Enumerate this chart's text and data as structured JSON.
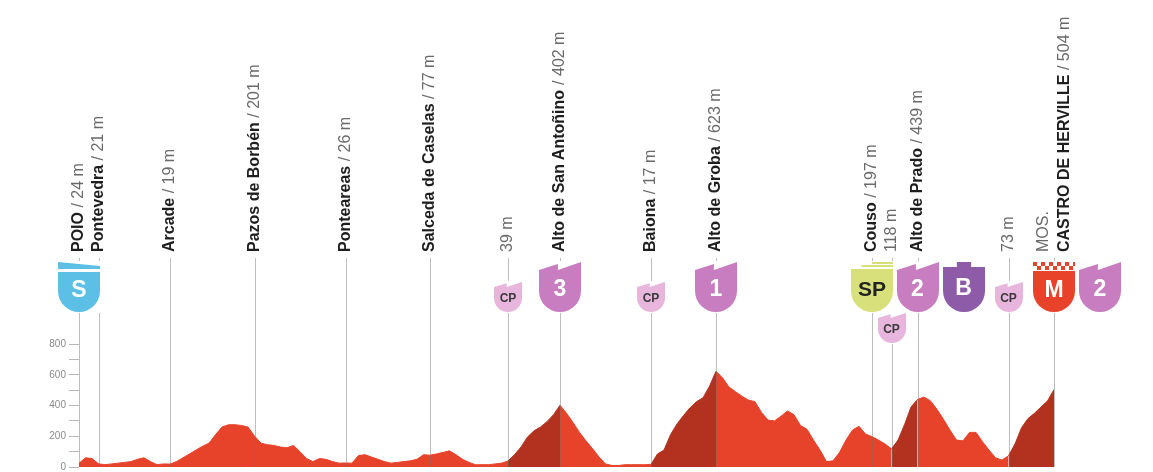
{
  "chart_data": {
    "type": "area",
    "categories": [
      "POIO / 24 m",
      null,
      null,
      "Pontevedra / 21 m",
      null,
      null,
      null,
      null,
      null,
      null,
      null,
      null,
      null,
      null,
      "Arcade / 19 m",
      null,
      null,
      null,
      null,
      null,
      null,
      null,
      null,
      null,
      null,
      null,
      null,
      "Pazos de Borbén / 201 m",
      null,
      null,
      null,
      null,
      null,
      null,
      null,
      null,
      null,
      null,
      null,
      null,
      null,
      "Ponteareas / 26 m",
      null,
      null,
      null,
      null,
      null,
      null,
      null,
      null,
      null,
      null,
      null,
      null,
      "Salceda de Caselas / 77 m",
      null,
      null,
      null,
      null,
      null,
      null,
      null,
      null,
      null,
      null,
      null,
      "39 m",
      null,
      null,
      null,
      null,
      null,
      null,
      null,
      "Alto de San Antoñino / 402 m",
      null,
      null,
      null,
      null,
      null,
      null,
      null,
      null,
      null,
      null,
      null,
      null,
      null,
      "Baiona / 17 m",
      null,
      null,
      null,
      null,
      null,
      null,
      null,
      null,
      null,
      "Alto de Groba / 623 m",
      null,
      null,
      null,
      null,
      null,
      null,
      null,
      null,
      null,
      null,
      null,
      null,
      null,
      null,
      null,
      null,
      null,
      null,
      null,
      null,
      null,
      null,
      null,
      "Couso / 197 m",
      null,
      null,
      "118 m",
      null,
      null,
      null,
      "Alto de Prado / 439 m",
      null,
      null,
      null,
      null,
      null,
      null,
      null,
      null,
      null,
      null,
      null,
      null,
      null,
      "73 m",
      null,
      null,
      null,
      null,
      null,
      null,
      "MOS.\nCASTRO DE HERVILLE / 504 m"
    ],
    "series": [
      {
        "color": "#e7432b",
        "values": [
          24,
          60,
          55,
          21,
          15,
          20,
          25,
          30,
          35,
          50,
          60,
          35,
          15,
          20,
          19,
          35,
          60,
          85,
          110,
          135,
          155,
          210,
          260,
          275,
          275,
          270,
          260,
          201,
          155,
          145,
          140,
          130,
          125,
          140,
          100,
          55,
          35,
          55,
          50,
          35,
          25,
          26,
          25,
          75,
          80,
          65,
          50,
          35,
          25,
          30,
          35,
          40,
          50,
          80,
          77,
          85,
          95,
          105,
          80,
          50,
          30,
          15,
          15,
          15,
          20,
          25,
          39,
          null,
          null,
          null,
          null,
          null,
          null,
          null,
          402,
          350,
          290,
          225,
          170,
          120,
          65,
          20,
          10,
          10,
          15,
          15,
          15,
          15,
          17,
          null,
          null,
          null,
          null,
          null,
          null,
          null,
          null,
          null,
          623,
          580,
          520,
          490,
          460,
          435,
          425,
          355,
          305,
          300,
          330,
          365,
          340,
          270,
          245,
          175,
          110,
          35,
          40,
          95,
          175,
          240,
          265,
          215,
          197,
          175,
          150,
          118,
          null,
          null,
          null,
          439,
          455,
          430,
          375,
          310,
          240,
          175,
          170,
          225,
          225,
          165,
          110,
          60,
          45,
          73,
          null,
          null,
          null,
          null,
          null,
          null,
          null
        ]
      },
      {
        "color": "#b2321f",
        "values": [
          null,
          null,
          null,
          null,
          null,
          null,
          null,
          null,
          null,
          null,
          null,
          null,
          null,
          null,
          null,
          null,
          null,
          null,
          null,
          null,
          null,
          null,
          null,
          null,
          null,
          null,
          null,
          null,
          null,
          null,
          null,
          null,
          null,
          null,
          null,
          null,
          null,
          null,
          null,
          null,
          null,
          null,
          null,
          null,
          null,
          null,
          null,
          null,
          null,
          null,
          null,
          null,
          null,
          null,
          null,
          null,
          null,
          null,
          null,
          null,
          null,
          null,
          null,
          null,
          null,
          null,
          39,
          80,
          130,
          195,
          235,
          260,
          295,
          340,
          402,
          null,
          null,
          null,
          null,
          null,
          null,
          null,
          null,
          null,
          null,
          null,
          null,
          null,
          17,
          85,
          110,
          210,
          280,
          335,
          385,
          425,
          450,
          525,
          623,
          null,
          null,
          null,
          null,
          null,
          null,
          null,
          null,
          null,
          null,
          null,
          null,
          null,
          null,
          null,
          null,
          null,
          null,
          null,
          null,
          null,
          null,
          null,
          null,
          null,
          null,
          118,
          175,
          275,
          390,
          439,
          null,
          null,
          null,
          null,
          null,
          null,
          null,
          null,
          null,
          null,
          null,
          null,
          null,
          73,
          150,
          255,
          315,
          350,
          390,
          430,
          504
        ]
      }
    ],
    "ylim": [
      0,
      800
    ],
    "yticks": [
      0,
      {
        "value": 100,
        "label": null
      },
      200,
      {
        "value": 300,
        "label": null
      },
      400,
      {
        "value": 500,
        "label": null
      },
      600,
      {
        "value": 700,
        "label": null
      },
      800
    ],
    "annotations": [
      "S",
      "CP",
      "3",
      "CP",
      "1",
      "SP",
      "CP",
      "2",
      "B",
      "CP",
      "M",
      "2"
    ]
  }
}
